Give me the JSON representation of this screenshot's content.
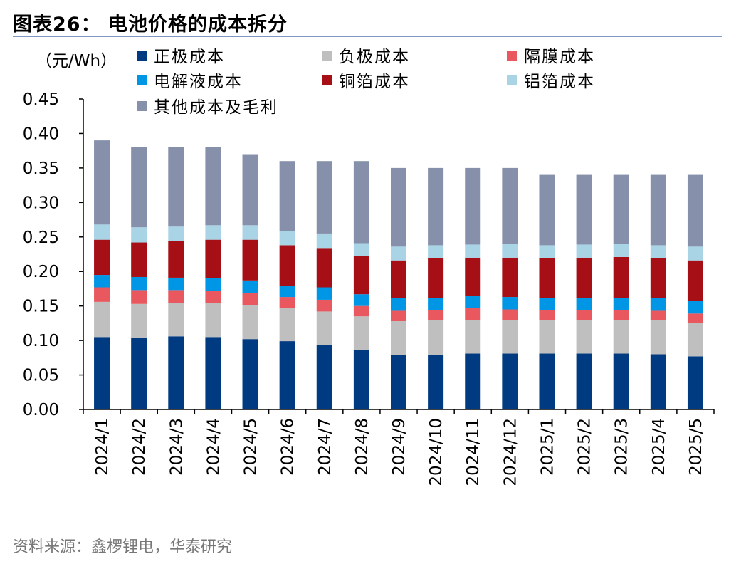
{
  "header": {
    "title": "图表26： 电池价格的成本拆分"
  },
  "footer": {
    "source": "资料来源：鑫椤锂电，华泰研究"
  },
  "chart_data": {
    "type": "bar",
    "stacked": true,
    "unit_label": "（元/Wh）",
    "categories": [
      "2024/1",
      "2024/2",
      "2024/3",
      "2024/4",
      "2024/5",
      "2024/6",
      "2024/7",
      "2024/8",
      "2024/9",
      "2024/10",
      "2024/11",
      "2024/12",
      "2025/1",
      "2025/2",
      "2025/3",
      "2025/4",
      "2025/5"
    ],
    "ylim": [
      0,
      0.45
    ],
    "yticks": [
      "0.00",
      "0.05",
      "0.10",
      "0.15",
      "0.20",
      "0.25",
      "0.30",
      "0.35",
      "0.40",
      "0.45"
    ],
    "legend_position": "top",
    "series": [
      {
        "name": "正极成本",
        "color": "#003a80",
        "values": [
          0.105,
          0.104,
          0.106,
          0.105,
          0.102,
          0.099,
          0.093,
          0.086,
          0.079,
          0.079,
          0.081,
          0.081,
          0.081,
          0.081,
          0.081,
          0.08,
          0.077
        ]
      },
      {
        "name": "负极成本",
        "color": "#bfbfbf",
        "values": [
          0.051,
          0.049,
          0.048,
          0.049,
          0.049,
          0.048,
          0.049,
          0.049,
          0.049,
          0.05,
          0.049,
          0.049,
          0.049,
          0.049,
          0.049,
          0.049,
          0.048
        ]
      },
      {
        "name": "隔膜成本",
        "color": "#e8585e",
        "values": [
          0.021,
          0.02,
          0.019,
          0.018,
          0.018,
          0.016,
          0.017,
          0.015,
          0.015,
          0.015,
          0.017,
          0.015,
          0.014,
          0.014,
          0.014,
          0.014,
          0.014
        ]
      },
      {
        "name": "电解液成本",
        "color": "#0096e6",
        "values": [
          0.018,
          0.019,
          0.018,
          0.018,
          0.018,
          0.016,
          0.018,
          0.017,
          0.018,
          0.018,
          0.018,
          0.018,
          0.018,
          0.018,
          0.018,
          0.018,
          0.018
        ]
      },
      {
        "name": "铜箔成本",
        "color": "#a50f15",
        "values": [
          0.051,
          0.05,
          0.053,
          0.056,
          0.059,
          0.059,
          0.057,
          0.055,
          0.055,
          0.057,
          0.055,
          0.057,
          0.057,
          0.058,
          0.059,
          0.058,
          0.059
        ]
      },
      {
        "name": "铝箔成本",
        "color": "#a8d4e6",
        "values": [
          0.022,
          0.022,
          0.021,
          0.021,
          0.021,
          0.021,
          0.021,
          0.019,
          0.02,
          0.019,
          0.019,
          0.02,
          0.019,
          0.019,
          0.019,
          0.019,
          0.02
        ]
      },
      {
        "name": "其他成本及毛利",
        "color": "#8790aa",
        "values": [
          0.122,
          0.116,
          0.115,
          0.113,
          0.103,
          0.101,
          0.105,
          0.119,
          0.114,
          0.112,
          0.111,
          0.11,
          0.102,
          0.101,
          0.1,
          0.102,
          0.104
        ]
      }
    ]
  }
}
